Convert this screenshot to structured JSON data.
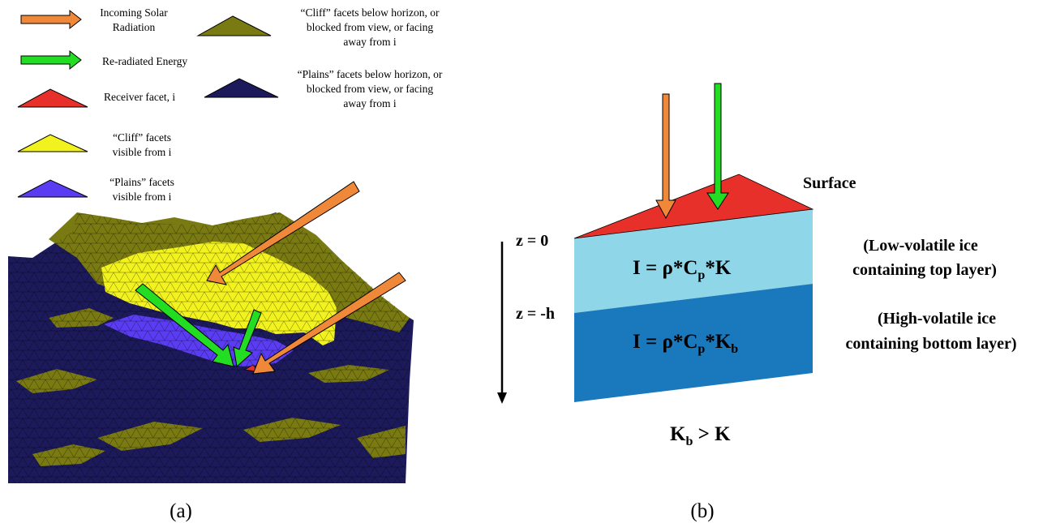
{
  "legend": {
    "incoming": [
      "Incoming Solar",
      "Radiation"
    ],
    "reradiated": "Re-radiated Energy",
    "receiver": "Receiver facet, i",
    "cliff_visible": [
      "“Cliff” facets",
      "visible from i"
    ],
    "plains_visible": [
      "“Plains” facets",
      "visible from i"
    ],
    "cliff_hidden": [
      "“Cliff” facets below horizon, or",
      "blocked from view, or facing",
      "away from i"
    ],
    "plains_hidden": [
      "“Plains” facets below horizon, or",
      "blocked from view, or facing",
      "away from i"
    ]
  },
  "panel_a": {
    "caption": "(a)"
  },
  "panel_b": {
    "caption": "(b)",
    "surface": "Surface",
    "z0": "z = 0",
    "zh": "z = -h",
    "top_layer": [
      "(Low-volatile ice",
      "containing top layer)"
    ],
    "bottom_layer": [
      "(High-volatile ice",
      "containing bottom layer)"
    ],
    "eq_top": {
      "lhs": "I = ρ*C",
      "sub1": "p",
      "rest": "*K"
    },
    "eq_bottom": {
      "lhs": "I = ρ*C",
      "sub1": "p",
      "rest": "*K",
      "sub2": "b"
    },
    "inequality": {
      "a": "K",
      "a_sub": "b",
      "rest": " > K"
    }
  },
  "colors": {
    "orange": "#F0883A",
    "green": "#22DD22",
    "red": "#E8302A",
    "yellow": "#F2F21E",
    "blue": "#5A3CF2",
    "olive": "#7A7A12",
    "navy": "#1C1A5A",
    "light_blue": "#8ED6E8",
    "dark_blue": "#1A78BC"
  }
}
